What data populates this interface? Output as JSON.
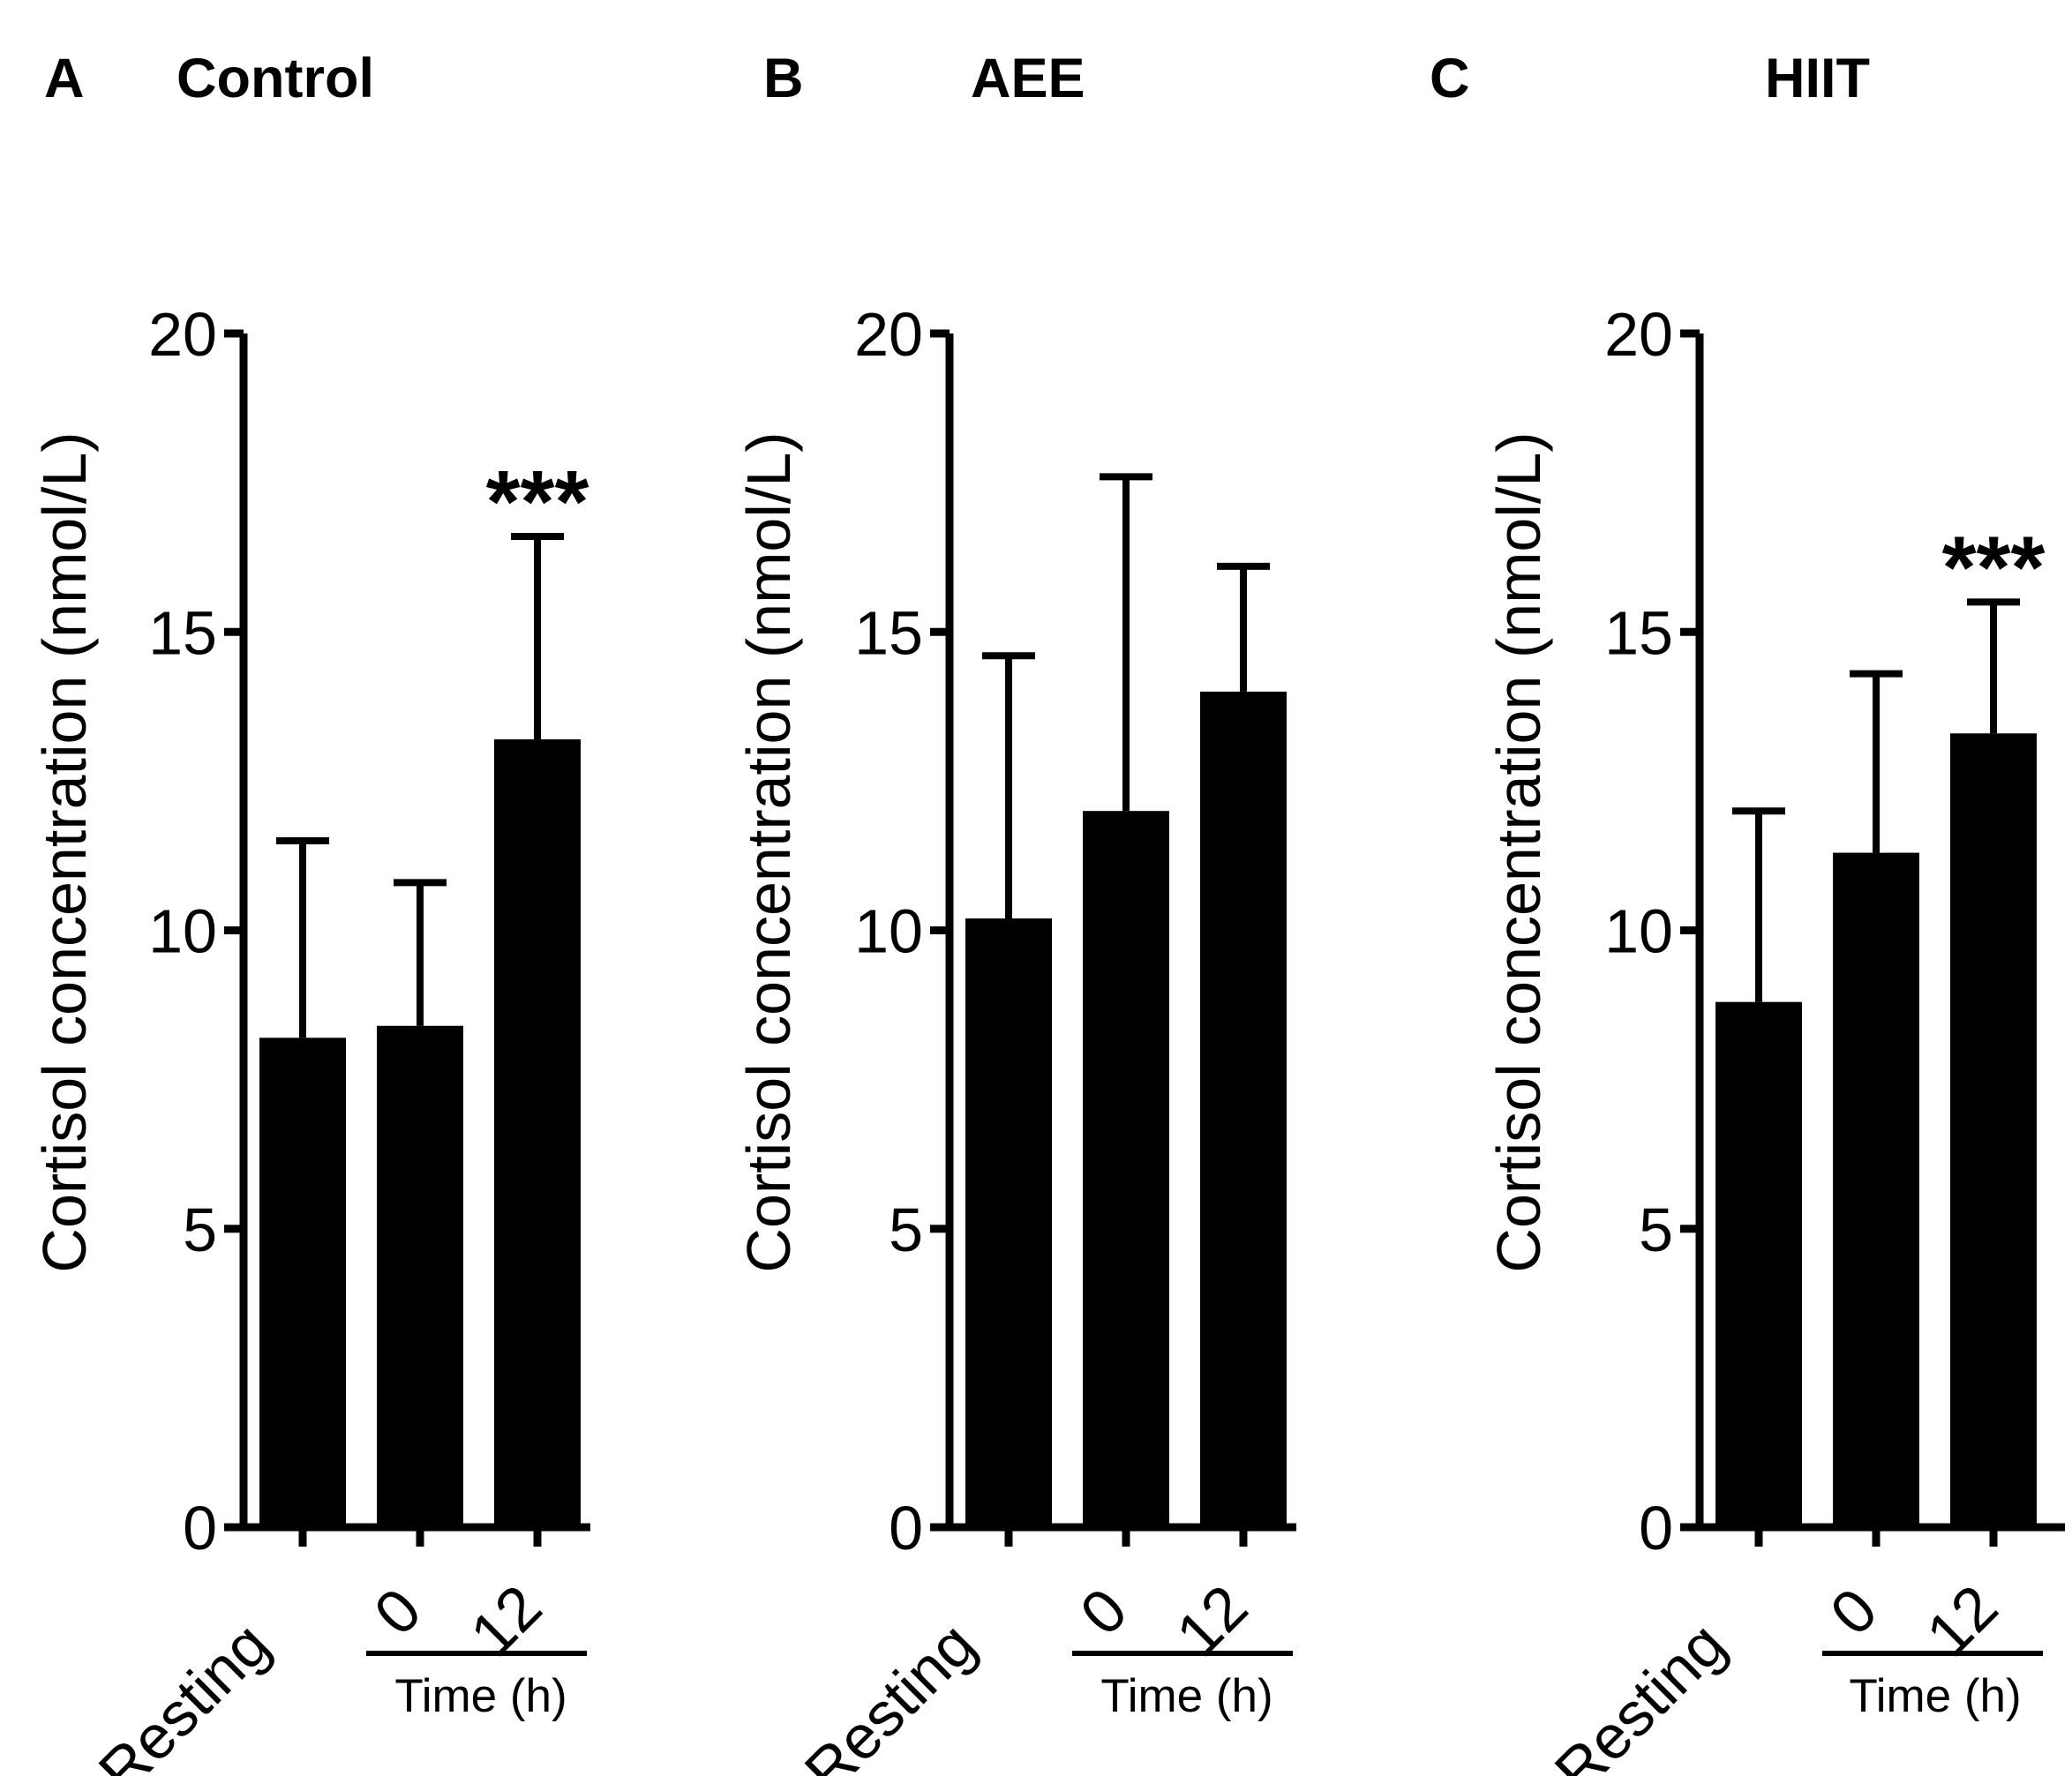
{
  "colors": {
    "bar": "#000000",
    "axis": "#000000",
    "background": "#ffffff"
  },
  "chart_data": [
    {
      "type": "bar",
      "panel_letter": "A",
      "title": "Control",
      "ylabel": "Cortisol concentration (nmol/L)",
      "ylim": [
        0,
        20
      ],
      "yticks": [
        "0",
        "5",
        "10",
        "15",
        "20"
      ],
      "categories": [
        "Resting",
        "0",
        "12"
      ],
      "values": [
        8.2,
        8.4,
        13.2
      ],
      "errors": [
        3.3,
        2.4,
        3.4
      ],
      "significance": [
        "",
        "",
        "***"
      ],
      "group_label": "Time  (h)"
    },
    {
      "type": "bar",
      "panel_letter": "B",
      "title": "AEE",
      "ylabel": "Cortisol concentration (nmol/L)",
      "ylim": [
        0,
        20
      ],
      "yticks": [
        "0",
        "5",
        "10",
        "15",
        "20"
      ],
      "categories": [
        "Resting",
        "0",
        "12"
      ],
      "values": [
        10.2,
        12.0,
        14.0
      ],
      "errors": [
        4.4,
        5.6,
        2.1
      ],
      "significance": [
        "",
        "",
        ""
      ],
      "group_label": "Time (h)"
    },
    {
      "type": "bar",
      "panel_letter": "C",
      "title": "HIIT",
      "ylabel": "Cortisol  concentration  (nmol/L)",
      "ylim": [
        0,
        20
      ],
      "yticks": [
        "0",
        "5",
        "10",
        "15",
        "20"
      ],
      "categories": [
        "Resting",
        "0",
        "12"
      ],
      "values": [
        8.8,
        11.3,
        13.3
      ],
      "errors": [
        3.2,
        3.0,
        2.2
      ],
      "significance": [
        "",
        "",
        "***"
      ],
      "group_label": "Time (h)"
    }
  ]
}
